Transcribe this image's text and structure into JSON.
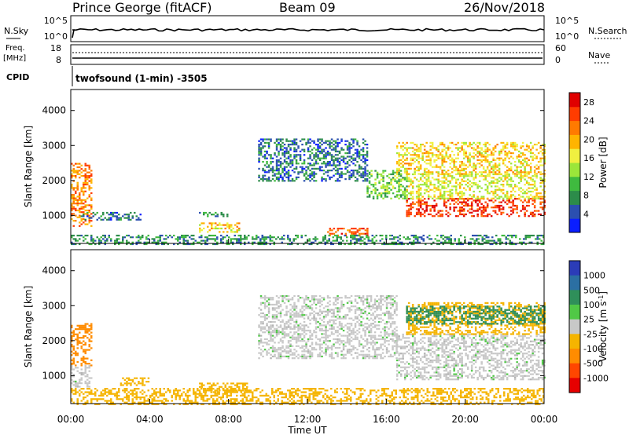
{
  "header": {
    "site": "Prince George (fitACF)",
    "beam": "Beam 09",
    "date": "26/Nov/2018"
  },
  "noise_panel": {
    "left_label": "N.Sky",
    "right_label": "N.Search",
    "left_ticks": [
      "10^5",
      "10^0"
    ],
    "right_ticks": [
      "10^5",
      "10^0"
    ]
  },
  "freq_panel": {
    "left_label_1": "Freq.",
    "left_label_2": "[MHz]",
    "right_label": "Nave",
    "left_ticks": [
      "18",
      "8"
    ],
    "right_ticks": [
      "60",
      "0"
    ]
  },
  "cpid": {
    "label": "CPID",
    "program": "twofsound (1-min) -3505"
  },
  "colors": {
    "power_scale": [
      "#0a1eff",
      "#2b4fb0",
      "#2c8c4a",
      "#3fba3f",
      "#9be63a",
      "#f0f040",
      "#ffb400",
      "#ff7a00",
      "#ff3c00",
      "#e00000"
    ],
    "velocity_scale": [
      "#2b3cb8",
      "#2b6fa3",
      "#2f8f5a",
      "#50c846",
      "#b4b4b4",
      "#b4b4b4",
      "#f5b400",
      "#ff8c00",
      "#ff4600",
      "#e60000"
    ],
    "ground_scatter": "#c8c8c8"
  },
  "chart_data": [
    {
      "type": "heatmap",
      "title": "",
      "xlabel": "",
      "ylabel": "Slant Range [km]",
      "x_ticks": [
        "00:00",
        "04:00",
        "08:00",
        "12:00",
        "16:00",
        "20:00",
        "00:00"
      ],
      "y_ticks": [
        "1000",
        "2000",
        "3000",
        "4000"
      ],
      "ylim": [
        200,
        4600
      ],
      "colorbar_label": "Power [dB]",
      "colorbar_ticks": [
        "4",
        "8",
        "12",
        "16",
        "20",
        "24",
        "28"
      ],
      "colorbar_range": [
        0,
        30
      ],
      "regions": [
        {
          "t": [
            0.0,
            1.0
          ],
          "r": [
            700,
            2500
          ],
          "value": 22
        },
        {
          "t": [
            0.5,
            3.5
          ],
          "r": [
            900,
            1100
          ],
          "value": 6
        },
        {
          "t": [
            6.5,
            8.0
          ],
          "r": [
            1000,
            1100
          ],
          "value": 8
        },
        {
          "t": [
            6.5,
            8.5
          ],
          "r": [
            550,
            800
          ],
          "value": 18
        },
        {
          "t": [
            9.5,
            15.0
          ],
          "r": [
            2000,
            3200
          ],
          "value": 6
        },
        {
          "t": [
            13.0,
            15.0
          ],
          "r": [
            450,
            650
          ],
          "value": 24
        },
        {
          "t": [
            15.0,
            17.0
          ],
          "r": [
            1500,
            2300
          ],
          "value": 12
        },
        {
          "t": [
            17.0,
            24.0
          ],
          "r": [
            1000,
            1500
          ],
          "value": 26
        },
        {
          "t": [
            17.0,
            24.0
          ],
          "r": [
            1500,
            2200
          ],
          "value": 16
        },
        {
          "t": [
            16.5,
            24.0
          ],
          "r": [
            2200,
            3100
          ],
          "value": 18
        },
        {
          "t": [
            0.0,
            24.0
          ],
          "r": [
            200,
            450
          ],
          "value": 8
        }
      ]
    },
    {
      "type": "heatmap",
      "title": "",
      "xlabel": "Time UT",
      "ylabel": "Slant Range [km]",
      "x_ticks": [
        "00:00",
        "04:00",
        "08:00",
        "12:00",
        "16:00",
        "20:00",
        "00:00"
      ],
      "y_ticks": [
        "1000",
        "2000",
        "3000",
        "4000"
      ],
      "ylim": [
        200,
        4600
      ],
      "colorbar_label": "Velocity [m s^-1]",
      "colorbar_ticks": [
        "1000",
        "500",
        "100",
        "25",
        "-25",
        "-100",
        "-500",
        "-1000"
      ],
      "regions": [
        {
          "t": [
            0.0,
            1.0
          ],
          "r": [
            1300,
            2500
          ],
          "value": -600
        },
        {
          "t": [
            0.0,
            1.0
          ],
          "r": [
            700,
            1300
          ],
          "value": 0
        },
        {
          "t": [
            2.5,
            4.0
          ],
          "r": [
            750,
            950
          ],
          "value": -150
        },
        {
          "t": [
            6.5,
            9.0
          ],
          "r": [
            550,
            800
          ],
          "value": -150
        },
        {
          "t": [
            9.5,
            16.5
          ],
          "r": [
            1500,
            3300
          ],
          "value": 0
        },
        {
          "t": [
            16.5,
            24.0
          ],
          "r": [
            900,
            2200
          ],
          "value": 0
        },
        {
          "t": [
            17.0,
            24.0
          ],
          "r": [
            2200,
            3100
          ],
          "value": -300
        },
        {
          "t": [
            17.0,
            24.0
          ],
          "r": [
            2500,
            3000
          ],
          "value": 150
        },
        {
          "t": [
            0.0,
            24.0
          ],
          "r": [
            200,
            650
          ],
          "value": -150
        }
      ]
    }
  ],
  "xaxis_label": "Time UT"
}
